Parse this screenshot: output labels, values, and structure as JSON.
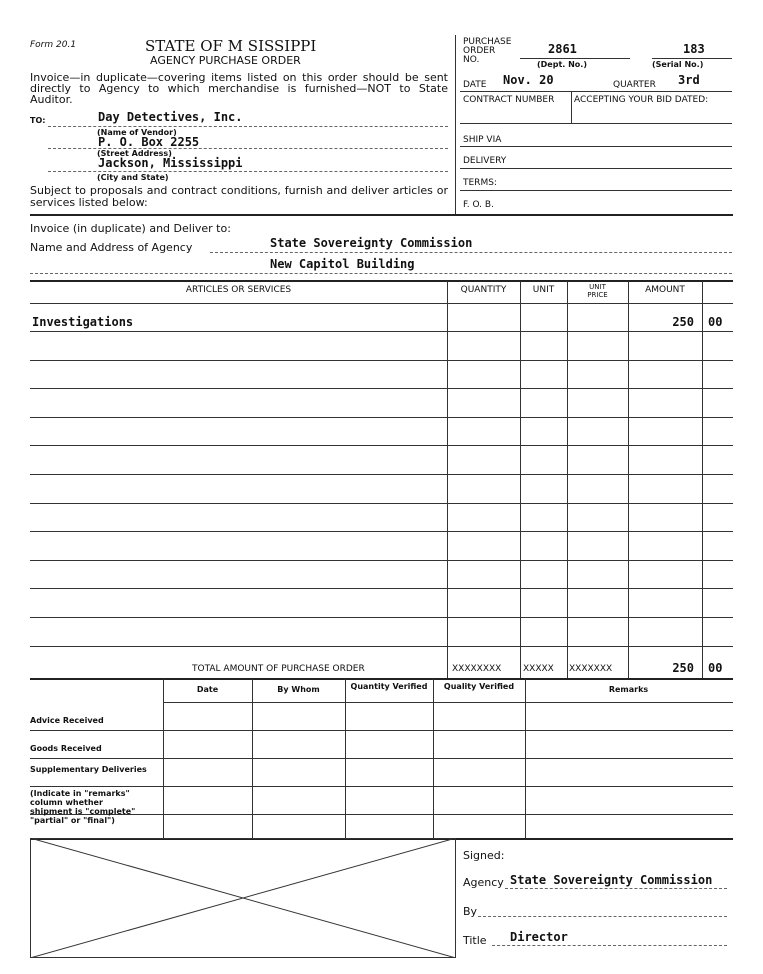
{
  "header": {
    "form_number": "Form 20.1",
    "title": "STATE OF M  SISSIPPI",
    "subtitle": "AGENCY PURCHASE ORDER",
    "instructions": "Invoice—in duplicate—covering items listed on this order should be sent directly to Agency to which merchandise is furnished—NOT to State Auditor."
  },
  "vendor": {
    "to_label": "TO:",
    "name": "Day Detectives, Inc.",
    "name_label": "(Name of Vendor)",
    "street": "P. O. Box 2255",
    "street_label": "(Street Address)",
    "city": "Jackson, Mississippi",
    "city_label": "(City and State)"
  },
  "subject_text": "Subject to proposals and contract conditions, furnish and deliver articles or services listed below:",
  "order_info": {
    "po_label": "PURCHASE ORDER NO.",
    "dept_no": "2861",
    "dept_label": "(Dept. No.)",
    "serial_no": "183",
    "serial_label": "(Serial No.)",
    "date_label": "DATE",
    "date": "Nov. 20",
    "quarter_label": "QUARTER",
    "quarter": "3rd",
    "contract_label": "CONTRACT NUMBER",
    "bid_label": "ACCEPTING YOUR BID DATED:",
    "ship_via_label": "SHIP VIA",
    "delivery_label": "DELIVERY",
    "terms_label": "TERMS:",
    "fob_label": "F. O. B."
  },
  "deliver": {
    "invoice_label": "Invoice (in duplicate) and Deliver to:",
    "agency_label": "Name and Address of Agency",
    "agency_name": "State Sovereignty Commission",
    "agency_address": "New Capitol Building"
  },
  "items_table": {
    "headers": [
      "ARTICLES OR SERVICES",
      "QUANTITY",
      "UNIT",
      "UNIT PRICE",
      "AMOUNT"
    ],
    "rows": [
      {
        "article": "Investigations",
        "amount_dollars": "250",
        "amount_cents": "00"
      }
    ],
    "total_label": "TOTAL AMOUNT OF PURCHASE ORDER",
    "total_qty": "XXXXXXXX",
    "total_unit": "XXXXX",
    "total_price": "XXXXXXX",
    "total_dollars": "250",
    "total_cents": "00"
  },
  "receipt_table": {
    "headers": [
      "Date",
      "By Whom",
      "Quantity Verified",
      "Quality Verified",
      "Remarks"
    ],
    "row_labels": [
      "Advice Received",
      "Goods Received",
      "Supplementary Deliveries",
      "(Indicate in \"remarks\" column whether shipment is \"complete\" \"partial\" or \"final\")"
    ]
  },
  "signature": {
    "signed_label": "Signed:",
    "agency_label": "Agency",
    "agency": "State Sovereignty Commission",
    "by_label": "By",
    "title_label": "Title",
    "title": "Director"
  }
}
